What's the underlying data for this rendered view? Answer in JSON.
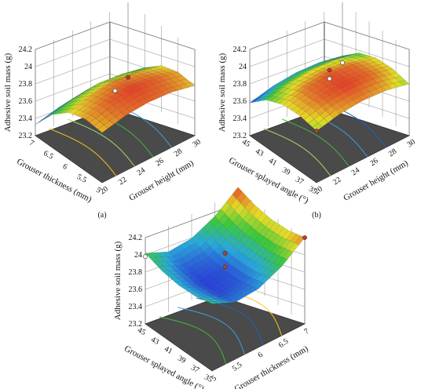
{
  "chart_data": [
    {
      "type": "surface3d",
      "panel_label": "(a)",
      "zlabel": "Adhesive soil mass (g)",
      "zticks": [
        "23.2",
        "23.4",
        "23.6",
        "23.8",
        "24",
        "24.2"
      ],
      "zlim": [
        23.2,
        24.2
      ],
      "x": {
        "label": "Grouser height (mm)",
        "ticks": [
          "20",
          "22",
          "24",
          "26",
          "28",
          "30"
        ],
        "range": [
          20,
          30
        ]
      },
      "y": {
        "label": "Grouser thickness (mm)",
        "ticks": [
          "5",
          "5.5",
          "6",
          "6.5",
          "7"
        ],
        "range": [
          5,
          7
        ]
      },
      "surface": {
        "x_values": [
          20,
          22.5,
          25,
          27.5,
          30
        ],
        "y_values": [
          5,
          5.5,
          6,
          6.5,
          7
        ],
        "z_values": [
          [
            23.78,
            23.84,
            23.86,
            23.84,
            23.78
          ],
          [
            23.8,
            23.86,
            23.89,
            23.86,
            23.8
          ],
          [
            23.74,
            23.8,
            23.83,
            23.8,
            23.74
          ],
          [
            23.58,
            23.64,
            23.67,
            23.64,
            23.58
          ],
          [
            23.33,
            23.39,
            23.42,
            23.39,
            23.33
          ]
        ]
      },
      "design_points": [
        {
          "x": 30,
          "y": 7,
          "z": 23.33,
          "color": "#c0392b"
        },
        {
          "x": 25,
          "y": 6,
          "z": 23.72,
          "color": "#ffffff"
        }
      ],
      "contours": "yes"
    },
    {
      "type": "surface3d",
      "panel_label": "(b)",
      "zlabel": "Adhesive soil mass (g)",
      "zticks": [
        "23.2",
        "23.4",
        "23.6",
        "23.8",
        "24",
        "24.2"
      ],
      "zlim": [
        23.2,
        24.2
      ],
      "x": {
        "label": "Grouser height (mm)",
        "ticks": [
          "20",
          "22",
          "24",
          "26",
          "28",
          "30"
        ],
        "range": [
          20,
          30
        ]
      },
      "y": {
        "label": "Grouser splayed angle (°)",
        "ticks": [
          "35",
          "37",
          "39",
          "41",
          "43",
          "45"
        ],
        "range": [
          35,
          45
        ]
      },
      "surface": {
        "x_values": [
          20,
          22.5,
          25,
          27.5,
          30
        ],
        "y_values": [
          35,
          37.5,
          40,
          42.5,
          45
        ],
        "z_values": [
          [
            23.8,
            23.86,
            23.88,
            23.86,
            23.8
          ],
          [
            23.84,
            23.9,
            23.92,
            23.9,
            23.84
          ],
          [
            23.83,
            23.89,
            23.91,
            23.89,
            23.83
          ],
          [
            23.75,
            23.81,
            23.83,
            23.81,
            23.75
          ],
          [
            23.58,
            23.64,
            23.66,
            23.64,
            23.58
          ]
        ]
      },
      "design_points": [
        {
          "x": 20,
          "y": 35,
          "z": 23.8,
          "color": "#c0392b"
        },
        {
          "x": 25,
          "y": 40,
          "z": 23.96,
          "color": "#c0392b"
        },
        {
          "x": 25,
          "y": 40,
          "z": 23.86,
          "color": "#ffffff"
        },
        {
          "x": 30,
          "y": 45,
          "z": 23.5,
          "color": "#ffffff"
        }
      ],
      "contours": "yes"
    },
    {
      "type": "surface3d",
      "panel_label": "(c)",
      "zlabel": "Adhesive soil mass (g)",
      "zticks": [
        "23.2",
        "23.4",
        "23.6",
        "23.8",
        "24",
        "24.2"
      ],
      "zlim": [
        23.2,
        24.2
      ],
      "x": {
        "label": "Grouser thickness (mm)",
        "ticks": [
          "5",
          "5.5",
          "6",
          "6.5",
          "7"
        ],
        "range": [
          5,
          7
        ]
      },
      "y": {
        "label": "Grouser splayed angle (°)",
        "ticks": [
          "35",
          "37",
          "39",
          "41",
          "43",
          "45"
        ],
        "range": [
          35,
          45
        ]
      },
      "surface": {
        "x_values": [
          5,
          5.5,
          6,
          6.5,
          7
        ],
        "y_values": [
          35,
          37.5,
          40,
          42.5,
          45
        ],
        "z_values": [
          [
            23.98,
            23.86,
            23.88,
            24.0,
            24.2
          ],
          [
            23.93,
            23.81,
            23.83,
            23.95,
            24.15
          ],
          [
            23.92,
            23.8,
            23.82,
            23.94,
            24.14
          ],
          [
            23.95,
            23.83,
            23.85,
            23.97,
            24.17
          ],
          [
            24.02,
            23.9,
            23.92,
            24.04,
            24.24
          ]
        ]
      },
      "design_points": [
        {
          "x": 7,
          "y": 35,
          "z": 24.2,
          "color": "#c0392b"
        },
        {
          "x": 6,
          "y": 40,
          "z": 24.02,
          "color": "#c0392b"
        },
        {
          "x": 6,
          "y": 40,
          "z": 23.86,
          "color": "#c0392b"
        },
        {
          "x": 5,
          "y": 45,
          "z": 23.98,
          "color": "#ffffff"
        }
      ],
      "contours": "yes"
    }
  ]
}
